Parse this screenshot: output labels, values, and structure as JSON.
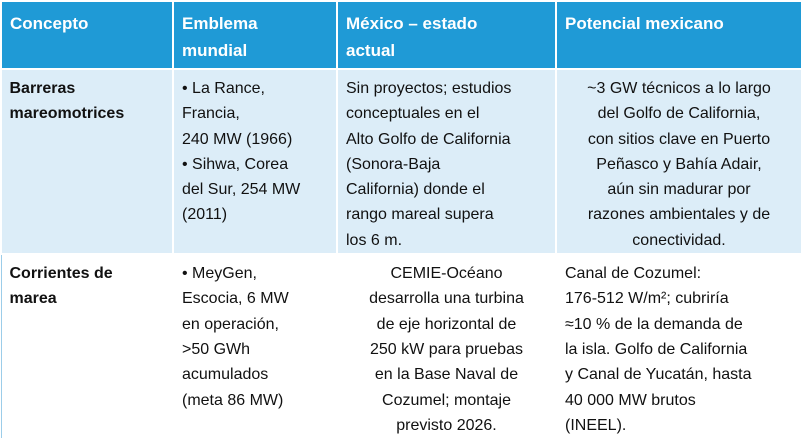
{
  "table": {
    "header": [
      [
        "Concepto"
      ],
      [
        "Emblema",
        "mundial"
      ],
      [
        "México – estado",
        "actual"
      ],
      [
        "Potencial mexicano"
      ]
    ],
    "rows": [
      [
        [
          "Barreras",
          "mareomotrices"
        ],
        [
          "• La Rance,",
          "Francia,",
          "240 MW (1966)",
          "• Sihwa, Corea",
          "del Sur, 254 MW",
          "(2011)"
        ],
        [
          "Sin proyectos; estudios",
          "conceptuales en el",
          "Alto Golfo de California",
          "(Sonora-Baja",
          "California) donde el",
          "rango mareal supera",
          "los 6 m."
        ],
        [
          "~3 GW técnicos a lo largo",
          "del Golfo de California,",
          "con sitios clave en Puerto",
          "Peñasco y Bahía Adair,",
          "aún sin madurar por",
          "razones ambientales y de",
          "conectividad."
        ]
      ],
      [
        [
          "Corrientes de",
          "marea"
        ],
        [
          "• MeyGen,",
          "Escocia, 6 MW",
          "en operación,",
          ">50 GWh",
          "acumulados",
          "(meta 86 MW)"
        ],
        [
          "CEMIE-Océano",
          "desarrolla una turbina",
          "de eje horizontal de",
          "250 kW para pruebas",
          "en la Base Naval de",
          "Cozumel; montaje",
          "previsto 2026."
        ],
        [
          "Canal de Cozumel:",
          "176-512 W/m²; cubriría",
          "≈10 % de la demanda de",
          "la isla. Golfo de California",
          "y Canal de Yucatán, hasta",
          "40 000 MW brutos",
          "(INEEL)."
        ]
      ]
    ]
  }
}
